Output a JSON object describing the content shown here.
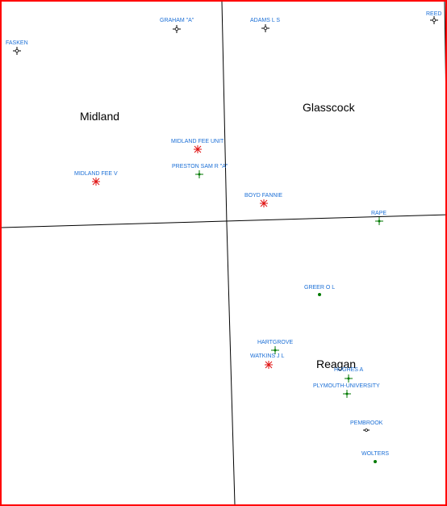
{
  "counties": [
    {
      "id": "midland",
      "name": "Midland"
    },
    {
      "id": "glasscock",
      "name": "Glasscock"
    },
    {
      "id": "reagan",
      "name": "Reagan"
    }
  ],
  "wells": [
    {
      "id": "fasken",
      "name": "FASKEN",
      "symbol": "cross-black"
    },
    {
      "id": "graham-a",
      "name": "GRAHAM \"A\"",
      "symbol": "cross-black"
    },
    {
      "id": "adams-l-s",
      "name": "ADAMS L S",
      "symbol": "cross-black"
    },
    {
      "id": "reed",
      "name": "REED",
      "symbol": "cross-black"
    },
    {
      "id": "midland-fee-unit",
      "name": "MIDLAND FEE UNIT",
      "symbol": "star-red"
    },
    {
      "id": "midland-fee-v",
      "name": "MIDLAND FEE V",
      "symbol": "star-red"
    },
    {
      "id": "preston-sam-r-a",
      "name": "PRESTON SAM R \"A\"",
      "symbol": "cross-green"
    },
    {
      "id": "boyd-fannie",
      "name": "BOYD FANNIE",
      "symbol": "star-red"
    },
    {
      "id": "rape",
      "name": "RAPE",
      "symbol": "cross-green"
    },
    {
      "id": "greer-o-l",
      "name": "GREER O L",
      "symbol": "dot-green"
    },
    {
      "id": "hartgrove",
      "name": "HARTGROVE",
      "symbol": "cross-green"
    },
    {
      "id": "watkins-j-l",
      "name": "WATKINS J L",
      "symbol": "star-red"
    },
    {
      "id": "hughes-a",
      "name": "HUGHES A",
      "symbol": "cross-green"
    },
    {
      "id": "plymouth-university",
      "name": "PLYMOUTH-UNIVERSITY",
      "symbol": "cross-green"
    },
    {
      "id": "pembrook",
      "name": "PEMBROOK",
      "symbol": "dash-black"
    },
    {
      "id": "wolters",
      "name": "WOLTERS",
      "symbol": "dot-green"
    }
  ],
  "colors": {
    "frame": "#ff0000",
    "label": "#1a6ed6",
    "green_symbol": "#007a00",
    "red_symbol": "#e01010",
    "black_symbol": "#000000"
  }
}
